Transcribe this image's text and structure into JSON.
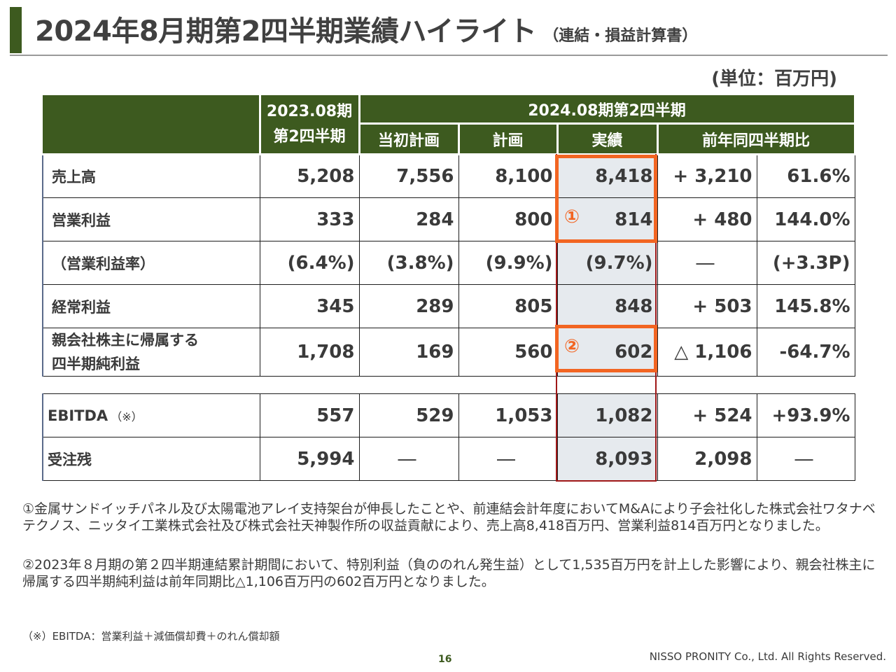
{
  "title": {
    "main": "2024年8月期第2四半期業績ハイライト",
    "sub": "（連結・損益計算書）"
  },
  "unit": "(単位：百万円)",
  "table": {
    "header": {
      "prev_period_line1": "2023.08期",
      "prev_period_line2": "第2四半期",
      "current_period": "2024.08期第2四半期",
      "col_initial_plan": "当初計画",
      "col_plan": "計画",
      "col_actual": "実績",
      "col_yoy": "前年同四半期比"
    },
    "rows": [
      {
        "label": "売上高",
        "prev": "5,208",
        "initial_plan": "7,556",
        "plan": "8,100",
        "actual": "8,418",
        "yoy_diff": "+ 3,210",
        "yoy_pct": "61.6%"
      },
      {
        "label": "営業利益",
        "prev": "333",
        "initial_plan": "284",
        "plan": "800",
        "actual": "814",
        "yoy_diff": "+ 480",
        "yoy_pct": "144.0%"
      },
      {
        "label": "（営業利益率）",
        "prev": "(6.4%)",
        "initial_plan": "(3.8%)",
        "plan": "(9.9%)",
        "actual": "(9.7%)",
        "yoy_diff": "―",
        "yoy_pct": "(+3.3P)"
      },
      {
        "label": "経常利益",
        "prev": "345",
        "initial_plan": "289",
        "plan": "805",
        "actual": "848",
        "yoy_diff": "+ 503",
        "yoy_pct": "145.8%"
      },
      {
        "label_line1": "親会社株主に帰属する",
        "label_line2": "四半期純利益",
        "prev": "1,708",
        "initial_plan": "169",
        "plan": "560",
        "actual": "602",
        "yoy_diff": "△ 1,106",
        "yoy_pct": "-64.7%"
      }
    ],
    "extra_rows": [
      {
        "label": "EBITDA",
        "label_note": "（※）",
        "prev": "557",
        "initial_plan": "529",
        "plan": "1,053",
        "actual": "1,082",
        "yoy_diff": "+ 524",
        "yoy_pct": "+93.9%"
      },
      {
        "label": "受注残",
        "prev": "5,994",
        "initial_plan": "―",
        "plan": "―",
        "actual": "8,093",
        "yoy_diff": "2,098",
        "yoy_pct": "―"
      }
    ],
    "markers": {
      "one": "①",
      "two": "②"
    }
  },
  "notes": {
    "note1": "①金属サンドイッチパネル及び太陽電池アレイ支持架台が伸長したことや、前連結会計年度においてM&Aにより子会社化した株式会社ワタナベテクノス、ニッタイ工業株式会社及び株式会社天神製作所の収益貢献により、売上高8,418百万円、営業利益814百万円となりました。",
    "note2": "②2023年８月期の第２四半期連結累計期間において、特別利益（負ののれん発生益）として1,535百万円を計上した影響により、親会社株主に帰属する四半期純利益は前年同期比△1,106百万円の602百万円となりました。",
    "footnote": "（※）EBITDA：営業利益＋減価償却費＋のれん償却額"
  },
  "footer": {
    "page_number": "16",
    "copyright": "NISSO PRONITY Co., Ltd. All Rights Reserved."
  },
  "colors": {
    "header_green": "#3d5a1f",
    "highlight_orange": "#f26522",
    "actual_column_bg": "#e6eaee",
    "actual_column_border": "#a01818"
  }
}
